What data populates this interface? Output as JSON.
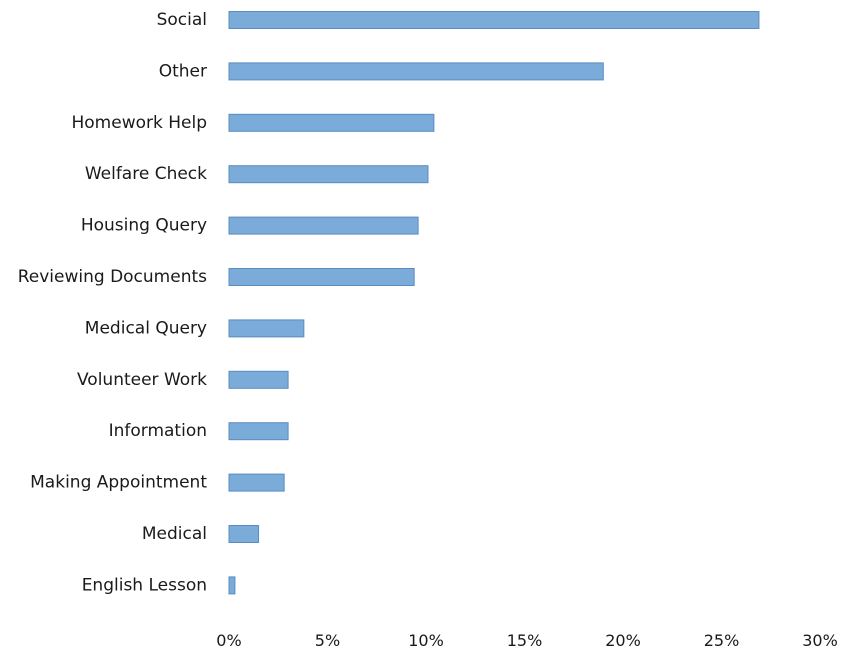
{
  "chart_data": {
    "type": "bar",
    "orientation": "horizontal",
    "title": "",
    "xlabel": "",
    "ylabel": "",
    "categories": [
      "Social",
      "Other",
      "Homework Help",
      "Welfare Check",
      "Housing Query",
      "Reviewing Documents",
      "Medical Query",
      "Volunteer Work",
      "Information",
      "Making Appointment",
      "Medical",
      "English Lesson"
    ],
    "values": [
      26.9,
      19.0,
      10.4,
      10.1,
      9.6,
      9.4,
      3.8,
      3.0,
      3.0,
      2.8,
      1.5,
      0.3
    ],
    "value_unit": "%",
    "xlim": [
      0,
      30
    ],
    "x_ticks": [
      "0%",
      "5%",
      "10%",
      "15%",
      "20%",
      "25%",
      "30%"
    ],
    "bar_color": "#7aabd9",
    "bar_edge_color": "#5b8cc0",
    "grid": false,
    "legend": "none"
  }
}
